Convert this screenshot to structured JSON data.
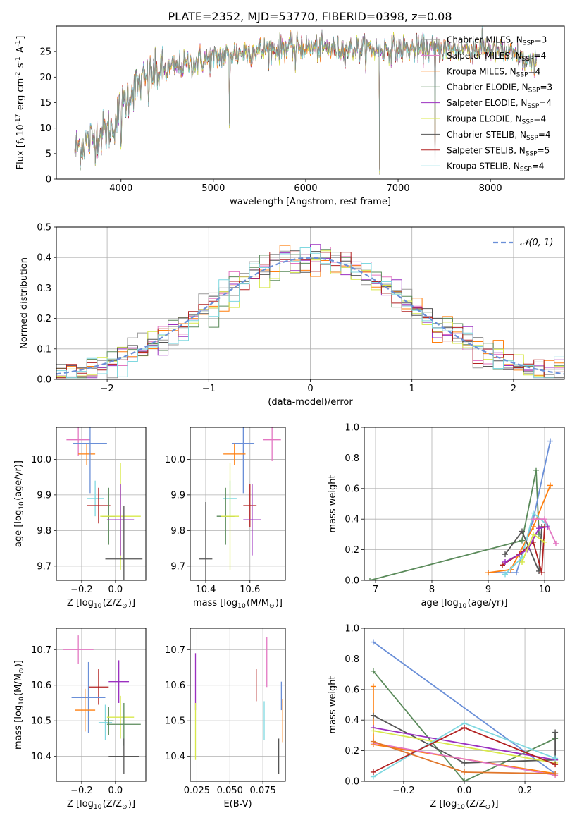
{
  "figure_title": "PLATE=2352, MJD=53770, FIBERID=0398, z=0.08",
  "colors": {
    "Chabrier MILES": "#9a9a9a",
    "Salpeter MILES": "#e377c2",
    "Kroupa MILES": "#ff7f0e",
    "Chabrier ELODIE": "#5a8a5a",
    "Salpeter ELODIE": "#9b30c0",
    "Kroupa ELODIE": "#d8e84a",
    "Chabrier STELIB": "#555555",
    "Salpeter STELIB": "#b22222",
    "Kroupa STELIB": "#7fd8e0",
    "mixed_blue": "#6a8fd8",
    "mixed_orange": "#e0762a"
  },
  "chart_data": [
    {
      "id": "spectrum",
      "type": "line",
      "title": "PLATE=2352, MJD=53770, FIBERID=0398, z=0.08",
      "xlabel": "wavelength [Angstrom, rest frame]",
      "ylabel": "Flux [f$_\\lambda$10$^{-17}$ erg cm$^{-2}$ s$^{-1}$ A$^{-1}$]",
      "xlim": [
        3300,
        8800
      ],
      "ylim": [
        0,
        30
      ],
      "xticks": [
        4000,
        5000,
        6000,
        7000,
        8000
      ],
      "yticks": [
        0,
        5,
        10,
        15,
        20,
        25
      ],
      "legend_position": "upper-right",
      "legend": [
        {
          "label": "Chabrier MILES, N",
          "sub": "SSP",
          "tail": "=3"
        },
        {
          "label": "Salpeter MILES, N",
          "sub": "SSP",
          "tail": "=4"
        },
        {
          "label": "Kroupa MILES, N",
          "sub": "SSP",
          "tail": "=4"
        },
        {
          "label": "Chabrier ELODIE, N",
          "sub": "SSP",
          "tail": "=3"
        },
        {
          "label": "Salpeter ELODIE, N",
          "sub": "SSP",
          "tail": "=4"
        },
        {
          "label": "Kroupa ELODIE, N",
          "sub": "SSP",
          "tail": "=4"
        },
        {
          "label": "Chabrier STELIB, N",
          "sub": "SSP",
          "tail": "=4"
        },
        {
          "label": "Salpeter STELIB, N",
          "sub": "SSP",
          "tail": "=5"
        },
        {
          "label": "Kroupa STELIB, N",
          "sub": "SSP",
          "tail": "=4"
        }
      ],
      "continuum_anchors": {
        "x": [
          3500,
          3700,
          3900,
          4000,
          4100,
          4300,
          4500,
          4800,
          5200,
          5600,
          5900,
          6300,
          6600,
          6900,
          7200,
          7400,
          7700,
          8000,
          8300,
          8500
        ],
        "y": [
          6,
          8,
          10,
          14,
          17,
          20,
          21.5,
          23,
          24.5,
          25.5,
          26,
          25.5,
          25.5,
          25.5,
          25.5,
          25.5,
          25.5,
          25.5,
          24,
          22
        ]
      },
      "absorption_features": [
        {
          "x": 4000,
          "depth": 10
        },
        {
          "x": 4300,
          "depth": 4
        },
        {
          "x": 5175,
          "depth": 18
        },
        {
          "x": 5890,
          "depth": 6
        },
        {
          "x": 6800,
          "depth": 25
        },
        {
          "x": 7400,
          "depth": 24
        }
      ]
    },
    {
      "id": "residuals",
      "type": "histogram",
      "xlabel": "(data-model)/error",
      "ylabel": "Normed distribution",
      "xlim": [
        -2.5,
        2.5
      ],
      "ylim": [
        0,
        0.5
      ],
      "xticks": [
        -2,
        -1,
        0,
        1,
        2
      ],
      "yticks": [
        0.0,
        0.1,
        0.2,
        0.3,
        0.4,
        0.5
      ],
      "bin_width": 0.1,
      "series_count": 9,
      "reference_curve": {
        "label": "$\\mathcal{N}(0, 1)$",
        "mean": 0,
        "sigma": 1,
        "style": "dashed"
      },
      "legend_position": "upper-right"
    },
    {
      "id": "z-age",
      "type": "errorbar",
      "xlabel": "Z [log$_{10}$(Z/Z$_\\odot$)]",
      "ylabel": "age  [log$_{10}$(age/yr)]",
      "xlim": [
        -0.35,
        0.18
      ],
      "ylim": [
        9.66,
        10.09
      ],
      "xticks": [
        -0.2,
        0.0
      ],
      "yticks": [
        9.7,
        9.8,
        9.9,
        10.0
      ],
      "points": [
        {
          "model": "Salpeter MILES",
          "x": -0.22,
          "xerr": 0.07,
          "y": 10.055,
          "yerr": 0.045
        },
        {
          "model": "Kroupa MILES",
          "x": -0.17,
          "xerr": 0.05,
          "y": 10.015,
          "yerr": 0.03
        },
        {
          "model": "mixed_blue",
          "x": -0.15,
          "xerr": 0.1,
          "y": 10.045,
          "yerr": 0.14
        },
        {
          "model": "Kroupa STELIB",
          "x": -0.12,
          "xerr": 0.05,
          "y": 9.89,
          "yerr": 0.05
        },
        {
          "model": "Salpeter STELIB",
          "x": -0.1,
          "xerr": 0.07,
          "y": 9.87,
          "yerr": 0.05
        },
        {
          "model": "Chabrier ELODIE",
          "x": -0.04,
          "xerr": 0.04,
          "y": 9.84,
          "yerr": 0.08
        },
        {
          "model": "Kroupa ELODIE",
          "x": 0.03,
          "xerr": 0.12,
          "y": 9.84,
          "yerr": 0.15
        },
        {
          "model": "Salpeter ELODIE",
          "x": 0.03,
          "xerr": 0.08,
          "y": 9.83,
          "yerr": 0.1
        },
        {
          "model": "Chabrier STELIB",
          "x": 0.05,
          "xerr": 0.11,
          "y": 9.72,
          "yerr": 0.15
        }
      ]
    },
    {
      "id": "mass-age",
      "type": "errorbar",
      "xlabel": "mass [log$_{10}$(M/M$_\\odot$)]",
      "ylabel": "",
      "xlim": [
        10.33,
        10.76
      ],
      "ylim": [
        9.66,
        10.09
      ],
      "xticks": [
        10.4,
        10.6
      ],
      "yticks": [
        9.7,
        9.8,
        9.9,
        10.0
      ],
      "points": [
        {
          "model": "Salpeter MILES",
          "x": 10.7,
          "xerr": 0.04,
          "y": 10.055,
          "yerr": 0.06
        },
        {
          "model": "mixed_blue",
          "x": 10.57,
          "xerr": 0.05,
          "y": 10.045,
          "yerr": 0.14
        },
        {
          "model": "Kroupa MILES",
          "x": 10.53,
          "xerr": 0.05,
          "y": 10.015,
          "yerr": 0.03
        },
        {
          "model": "Kroupa STELIB",
          "x": 10.51,
          "xerr": 0.03,
          "y": 9.89,
          "yerr": 0.05
        },
        {
          "model": "Salpeter STELIB",
          "x": 10.6,
          "xerr": 0.03,
          "y": 9.87,
          "yerr": 0.06
        },
        {
          "model": "Chabrier ELODIE",
          "x": 10.49,
          "xerr": 0.04,
          "y": 9.84,
          "yerr": 0.08
        },
        {
          "model": "Kroupa ELODIE",
          "x": 10.51,
          "xerr": 0.04,
          "y": 9.84,
          "yerr": 0.15
        },
        {
          "model": "Salpeter ELODIE",
          "x": 10.61,
          "xerr": 0.04,
          "y": 9.83,
          "yerr": 0.1
        },
        {
          "model": "Chabrier STELIB",
          "x": 10.4,
          "xerr": 0.03,
          "y": 9.72,
          "yerr": 0.16
        }
      ]
    },
    {
      "id": "age-weight",
      "type": "line",
      "xlabel": "age  [log$_{10}$(age/yr)]",
      "ylabel": "mass weight",
      "xlim": [
        6.8,
        10.35
      ],
      "ylim": [
        0,
        1.0
      ],
      "xticks": [
        7,
        8,
        9,
        10
      ],
      "yticks": [
        0.0,
        0.2,
        0.4,
        0.6,
        0.8,
        1.0
      ],
      "series": [
        {
          "model": "Chabrier ELODIE",
          "x": [
            6.9,
            9.6,
            9.85,
            9.9
          ],
          "y": [
            0.0,
            0.26,
            0.72,
            0.3
          ]
        },
        {
          "model": "mixed_blue",
          "x": [
            9.0,
            9.5,
            9.8,
            10.1
          ],
          "y": [
            0.05,
            0.05,
            0.4,
            0.91
          ]
        },
        {
          "model": "Kroupa MILES",
          "x": [
            9.0,
            9.4,
            9.8,
            10.1
          ],
          "y": [
            0.05,
            0.07,
            0.35,
            0.62
          ]
        },
        {
          "model": "Kroupa STELIB",
          "x": [
            9.3,
            9.6,
            9.8,
            10.05
          ],
          "y": [
            0.04,
            0.15,
            0.44,
            0.36
          ]
        },
        {
          "model": "Salpeter MILES",
          "x": [
            9.8,
            10.0,
            10.2
          ],
          "y": [
            0.4,
            0.4,
            0.24
          ]
        },
        {
          "model": "Chabrier STELIB",
          "x": [
            9.3,
            9.6,
            9.9,
            9.95
          ],
          "y": [
            0.17,
            0.32,
            0.06,
            0.35
          ]
        },
        {
          "model": "Salpeter STELIB",
          "x": [
            9.25,
            9.55,
            9.8,
            9.95,
            10.0
          ],
          "y": [
            0.1,
            0.17,
            0.25,
            0.05,
            0.35
          ]
        },
        {
          "model": "Salpeter ELODIE",
          "x": [
            9.3,
            9.7,
            9.9,
            10.05
          ],
          "y": [
            0.12,
            0.2,
            0.34,
            0.35
          ]
        },
        {
          "model": "Kroupa ELODIE",
          "x": [
            9.6,
            9.8,
            10.0
          ],
          "y": [
            0.12,
            0.3,
            0.25
          ]
        }
      ]
    },
    {
      "id": "z-mass",
      "type": "errorbar",
      "xlabel": "Z [log$_{10}$(Z/Z$_\\odot$)]",
      "ylabel": "mass [log$_{10}$(M/M$_\\odot$)]",
      "xlim": [
        -0.35,
        0.18
      ],
      "ylim": [
        10.33,
        10.76
      ],
      "xticks": [
        -0.2,
        0.0
      ],
      "yticks": [
        10.4,
        10.5,
        10.6,
        10.7
      ],
      "points": [
        {
          "model": "Salpeter MILES",
          "x": -0.22,
          "xerr": 0.09,
          "y": 10.7,
          "yerr": 0.04
        },
        {
          "model": "Salpeter STELIB",
          "x": -0.1,
          "xerr": 0.06,
          "y": 10.595,
          "yerr": 0.05
        },
        {
          "model": "Salpeter ELODIE",
          "x": 0.02,
          "xerr": 0.06,
          "y": 10.61,
          "yerr": 0.06
        },
        {
          "model": "mixed_blue",
          "x": -0.16,
          "xerr": 0.1,
          "y": 10.565,
          "yerr": 0.1
        },
        {
          "model": "Kroupa MILES",
          "x": -0.18,
          "xerr": 0.06,
          "y": 10.53,
          "yerr": 0.06
        },
        {
          "model": "Kroupa STELIB",
          "x": -0.06,
          "xerr": 0.04,
          "y": 10.495,
          "yerr": 0.05
        },
        {
          "model": "Chabrier ELODIE",
          "x": -0.04,
          "xerr": 0.03,
          "y": 10.5,
          "yerr": 0.04
        },
        {
          "model": "Kroupa ELODIE",
          "x": 0.03,
          "xerr": 0.08,
          "y": 10.51,
          "yerr": 0.06
        },
        {
          "model": "Chabrier ELODIE",
          "x": 0.05,
          "xerr": 0.1,
          "y": 10.49,
          "yerr": 0.06
        },
        {
          "model": "Chabrier STELIB",
          "x": 0.05,
          "xerr": 0.09,
          "y": 10.4,
          "yerr": 0.05
        }
      ]
    },
    {
      "id": "ebv-mass",
      "type": "errorbar",
      "xlabel": "E(B-V)",
      "ylabel": "",
      "xlim": [
        0.02,
        0.092
      ],
      "ylim": [
        10.33,
        10.76
      ],
      "xticks": [
        0.025,
        0.05,
        0.075
      ],
      "yticks": [
        10.4,
        10.5,
        10.6,
        10.7
      ],
      "points": [
        {
          "model": "Salpeter ELODIE",
          "x": 0.024,
          "xerr": 0,
          "y": 10.61,
          "yerr": 0.08
        },
        {
          "model": "Kroupa ELODIE",
          "x": 0.024,
          "xerr": 0,
          "y": 10.47,
          "yerr": 0.08
        },
        {
          "model": "Salpeter STELIB",
          "x": 0.07,
          "xerr": 0,
          "y": 10.6,
          "yerr": 0.045
        },
        {
          "model": "Salpeter MILES",
          "x": 0.078,
          "xerr": 0,
          "y": 10.665,
          "yerr": 0.07
        },
        {
          "model": "Kroupa STELIB",
          "x": 0.076,
          "xerr": 0,
          "y": 10.5,
          "yerr": 0.055
        },
        {
          "model": "mixed_blue",
          "x": 0.089,
          "xerr": 0,
          "y": 10.57,
          "yerr": 0.04
        },
        {
          "model": "Kroupa MILES",
          "x": 0.09,
          "xerr": 0,
          "y": 10.5,
          "yerr": 0.06
        },
        {
          "model": "Chabrier STELIB",
          "x": 0.087,
          "xerr": 0,
          "y": 10.4,
          "yerr": 0.05
        }
      ]
    },
    {
      "id": "z-weight",
      "type": "line",
      "xlabel": "Z [log$_{10}$(Z/Z$_\\odot$)]",
      "ylabel": "mass weight",
      "xlim": [
        -0.33,
        0.33
      ],
      "ylim": [
        0,
        1.0
      ],
      "xticks": [
        -0.2,
        0.0,
        0.2
      ],
      "yticks": [
        0.0,
        0.2,
        0.4,
        0.6,
        0.8,
        1.0
      ],
      "series": [
        {
          "model": "mixed_blue",
          "x": [
            -0.3,
            0.3
          ],
          "y": [
            0.91,
            0.05
          ]
        },
        {
          "model": "Kroupa MILES",
          "x": [
            -0.3,
            -0.3,
            0.3
          ],
          "y": [
            0.62,
            0.24,
            0.05
          ]
        },
        {
          "model": "Chabrier ELODIE",
          "x": [
            -0.3,
            0.0,
            0.3
          ],
          "y": [
            0.72,
            0.0,
            0.28
          ]
        },
        {
          "model": "Chabrier STELIB",
          "x": [
            -0.3,
            0.0,
            0.3,
            0.3
          ],
          "y": [
            0.43,
            0.12,
            0.14,
            0.32
          ]
        },
        {
          "model": "Salpeter ELODIE",
          "x": [
            -0.3,
            0.3
          ],
          "y": [
            0.35,
            0.14
          ]
        },
        {
          "model": "Kroupa ELODIE",
          "x": [
            -0.3,
            0.3
          ],
          "y": [
            0.33,
            0.12
          ]
        },
        {
          "model": "Kroupa STELIB",
          "x": [
            -0.3,
            0.0,
            0.3
          ],
          "y": [
            0.03,
            0.38,
            0.15
          ]
        },
        {
          "model": "Salpeter STELIB",
          "x": [
            -0.3,
            0.0,
            0.3
          ],
          "y": [
            0.06,
            0.35,
            0.11
          ]
        },
        {
          "model": "Salpeter MILES",
          "x": [
            -0.3,
            0.3
          ],
          "y": [
            0.25,
            0.04
          ]
        },
        {
          "model": "mixed_orange",
          "x": [
            -0.3,
            0.0,
            0.3
          ],
          "y": [
            0.26,
            0.06,
            0.05
          ]
        }
      ]
    }
  ]
}
